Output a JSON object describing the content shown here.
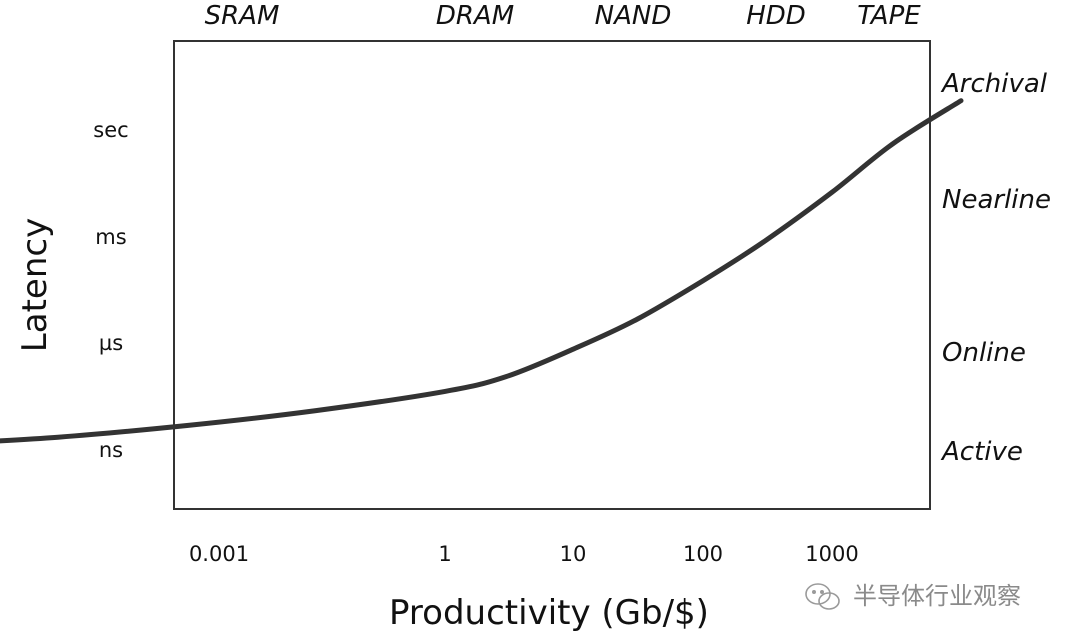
{
  "chart_data": {
    "type": "line",
    "xlabel": "Productivity (Gb/$)",
    "ylabel": "Latency",
    "x_scale": "log",
    "x_ticks": [
      "0.001",
      "1",
      "10",
      "100",
      "1000"
    ],
    "y_ticks": [
      "ns",
      "µs",
      "ms",
      "sec"
    ],
    "top_categories": [
      "SRAM",
      "DRAM",
      "NAND",
      "HDD",
      "TAPE"
    ],
    "right_categories": [
      "Active",
      "Online",
      "Nearline",
      "Archival"
    ],
    "series": [
      {
        "x": [
          0.0001,
          0.001,
          0.01,
          0.1,
          1,
          3,
          10,
          30,
          100,
          300,
          1000,
          3000,
          10000
        ],
        "y": [
          0.05,
          0.12,
          0.23,
          0.37,
          0.55,
          0.69,
          0.95,
          1.22,
          1.59,
          1.96,
          2.42,
          2.88,
          3.28
        ]
      }
    ],
    "line_color": "#333333",
    "grid": false,
    "legend": "none"
  },
  "watermark": {
    "text": "半导体行业观察",
    "logo": "wechat-logo"
  }
}
